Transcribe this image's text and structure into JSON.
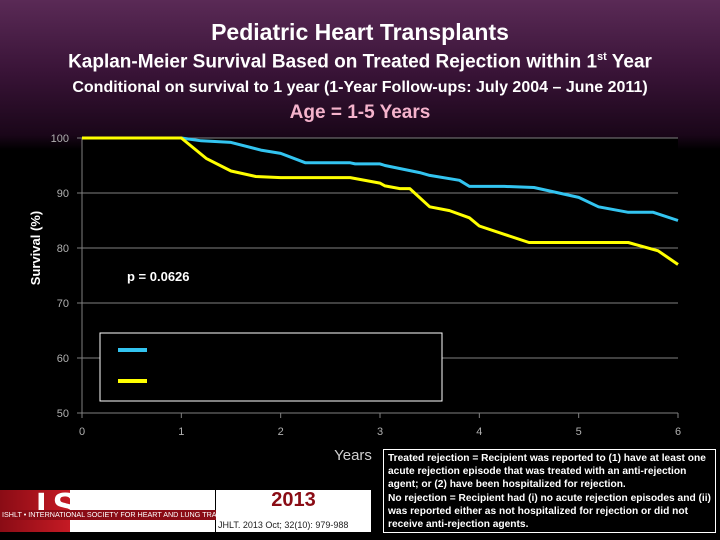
{
  "header": {
    "title": "Pediatric Heart Transplants",
    "subtitle_main": "Kaplan-Meier Survival Based on Treated Rejection within 1",
    "subtitle_sup": "st",
    "subtitle_end": " Year",
    "subtitle2": "Conditional on survival to 1 year (1-Year Follow-ups: July 2004 – June 2011)",
    "age_group": "Age = 1-5 Years"
  },
  "colors": {
    "treated": "#33c4f0",
    "none": "#ffff00",
    "plot_bg": "#000000",
    "grid": "#808080",
    "age": "#f5b3cc"
  },
  "chart_data": {
    "type": "line",
    "title": "Age = 1-5 Years",
    "xlabel": "Years",
    "ylabel": "Survival (%)",
    "xlim": [
      0,
      6
    ],
    "ylim": [
      50,
      100
    ],
    "xticks": [
      "0",
      "1",
      "2",
      "3",
      "4",
      "5",
      "6"
    ],
    "yticks": [
      "50",
      "60",
      "70",
      "80",
      "90",
      "100"
    ],
    "annotation": "p = 0.0626",
    "series": [
      {
        "name": "Treated rejection",
        "color": "#33c4f0",
        "x": [
          0,
          1,
          1.2,
          1.5,
          1.8,
          2.0,
          2.25,
          2.7,
          2.75,
          3.0,
          3.05,
          3.4,
          3.5,
          3.8,
          3.9,
          4.0,
          4.25,
          4.55,
          4.75,
          5.0,
          5.2,
          5.5,
          5.75,
          6.0
        ],
        "y": [
          100,
          100,
          99.5,
          99.2,
          97.8,
          97.2,
          95.5,
          95.5,
          95.3,
          95.3,
          95.0,
          93.7,
          93.2,
          92.3,
          91.2,
          91.2,
          91.2,
          91.0,
          90.2,
          89.2,
          87.5,
          86.5,
          86.5,
          85.0
        ]
      },
      {
        "name": "No rejection",
        "color": "#ffff00",
        "x": [
          0,
          1,
          1.25,
          1.5,
          1.75,
          2.0,
          2.5,
          2.7,
          3.0,
          3.05,
          3.2,
          3.3,
          3.5,
          3.7,
          3.9,
          4.0,
          4.25,
          4.5,
          4.75,
          5.0,
          5.25,
          5.5,
          5.6,
          5.8,
          6.0
        ],
        "y": [
          100,
          100,
          96.3,
          94.0,
          93.0,
          92.8,
          92.8,
          92.8,
          91.8,
          91.3,
          90.8,
          90.8,
          87.5,
          86.8,
          85.5,
          84.0,
          82.5,
          81.0,
          81.0,
          81.0,
          81.0,
          81.0,
          80.5,
          79.5,
          77.0
        ]
      }
    ]
  },
  "legend": {
    "entries": [
      {
        "name": "Treated rejection",
        "color": "#33c4f0",
        "label": ""
      },
      {
        "name": "No rejection",
        "color": "#ffff00",
        "label": ""
      }
    ]
  },
  "note": {
    "line1": "Treated rejection = Recipient was reported to (1) have at least one acute rejection episode that was treated with an anti-rejection agent; or (2) have been hospitalized for rejection.",
    "line2": "No rejection = Recipient had (i) no acute rejection episodes and (ii) was reported either as not hospitalized for rejection or did not receive anti-rejection agents."
  },
  "footer": {
    "logo_text": "ISHLT",
    "logo_strip": "ISHLT • INTERNATIONAL SOCIETY FOR HEART AND LUNG TRANSPLANTATION",
    "year": "2013",
    "citation": "JHLT. 2013 Oct; 32(10): 979-988"
  }
}
